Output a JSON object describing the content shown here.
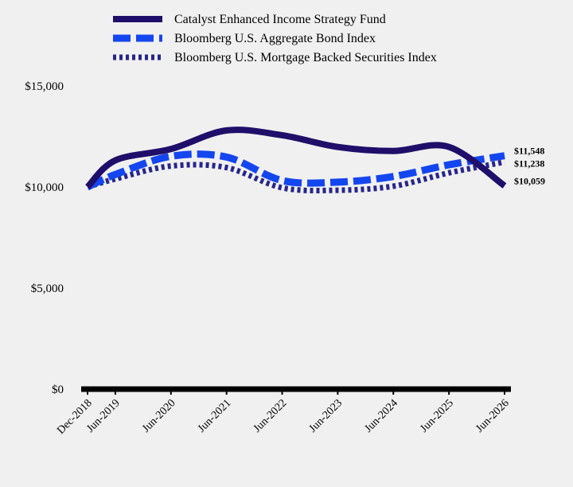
{
  "chart_data": {
    "type": "line",
    "title": "",
    "xlabel": "",
    "ylabel": "",
    "categories": [
      "Dec-2018",
      "Jun-2019",
      "Jun-2020",
      "Jun-2021",
      "Jun-2022",
      "Jun-2023",
      "Jun-2024",
      "Jun-2025",
      "Jun-2026"
    ],
    "x": [
      0,
      6,
      18,
      30,
      42,
      54,
      66,
      78,
      90
    ],
    "ylim": [
      0,
      15000
    ],
    "yticks": [
      0,
      5000,
      10000,
      15000
    ],
    "ytick_labels": [
      "$0",
      "$5,000",
      "$10,000",
      "$15,000"
    ],
    "grid": false,
    "legend_position": "top",
    "series": [
      {
        "name": "Catalyst Enhanced Income Strategy Fund",
        "color": "#1f0f6a",
        "style": "solid",
        "values": [
          10000,
          11320,
          11880,
          12800,
          12560,
          11980,
          11780,
          11980,
          10059
        ],
        "end_label": "$10,059"
      },
      {
        "name": "Bloomberg U.S. Aggregate Bond Index",
        "color": "#1446f0",
        "style": "dashed",
        "values": [
          10000,
          10620,
          11520,
          11480,
          10320,
          10240,
          10520,
          11100,
          11548
        ],
        "end_label": "$11,548"
      },
      {
        "name": "Bloomberg U.S. Mortgage Backed Securities Index",
        "color": "#26268c",
        "style": "dotted",
        "values": [
          10000,
          10400,
          11040,
          10960,
          9960,
          9840,
          10040,
          10700,
          11238
        ],
        "end_label": "$11,238"
      }
    ]
  }
}
